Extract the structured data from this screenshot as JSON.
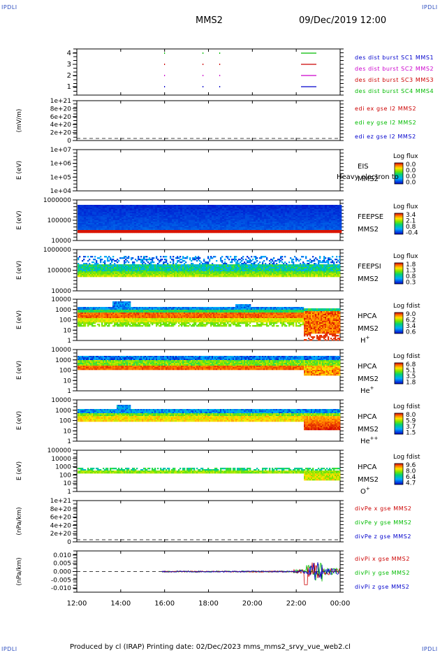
{
  "corner_labels": [
    "IPDLI",
    "IPDLI",
    "IPDLI",
    "IPDLI"
  ],
  "header": {
    "spacecraft": "MMS2",
    "datetime": "09/Dec/2019 12:00"
  },
  "footer": {
    "text": "Produced by cl (IRAP)    Printing date: 02/Dec/2023    mms_mms2_srvy_vue_web2.cl"
  },
  "time_axis": [
    "12:00",
    "14:00",
    "16:00",
    "18:00",
    "20:00",
    "22:00",
    "00:00"
  ],
  "chart_data": [
    {
      "type": "scatter",
      "panel": "burst",
      "yticks": [
        "1",
        "2",
        "3",
        "4"
      ],
      "legend": [
        {
          "text": "des dist burst SC1 MMS1",
          "color": "#0000cc"
        },
        {
          "text": "des dist burst SC2 MMS2",
          "color": "#cc00cc"
        },
        {
          "text": "des dist burst SC3 MMS3",
          "color": "#cc0000"
        },
        {
          "text": "des dist burst SC4 MMS4",
          "color": "#00bb00"
        }
      ]
    },
    {
      "type": "line",
      "panel": "edi",
      "ylabel": "(mV/m)",
      "yticks": [
        "1e+21",
        "8e+20",
        "6e+20",
        "4e+20",
        "2e+20",
        "0"
      ],
      "legend": [
        {
          "text": "edi ex gse l2 MMS2",
          "color": "#cc0000"
        },
        {
          "text": "edi ey gse l2 MMS2",
          "color": "#00bb00"
        },
        {
          "text": "edi ez gse l2 MMS2",
          "color": "#0000cc"
        }
      ]
    },
    {
      "type": "heatmap",
      "panel": "eis",
      "ylabel": "E (eV)",
      "yticks": [
        "1e+07",
        "1e+06",
        "1e+05",
        "1e+04"
      ],
      "instrument": "EIS",
      "sc": "MMS2",
      "overlay": "Heavy electron to",
      "cbar_title": "Log flux",
      "cbar_ticks": [
        "0.0",
        "0.0",
        "0.0",
        "0.0"
      ]
    },
    {
      "type": "heatmap",
      "panel": "feepse",
      "ylabel": "E (eV)",
      "yticks": [
        "1000000",
        "100000",
        "10000"
      ],
      "instrument": "FEEPSE",
      "sc": "MMS2",
      "cbar_title": "Log flux",
      "cbar_ticks": [
        "3.4",
        "2.1",
        "0.8",
        "-0.4"
      ]
    },
    {
      "type": "heatmap",
      "panel": "feepsi",
      "ylabel": "E (eV)",
      "yticks": [
        "1000000",
        "100000",
        "10000"
      ],
      "instrument": "FEEPSI",
      "sc": "MMS2",
      "cbar_title": "Log flux",
      "cbar_ticks": [
        "1.8",
        "1.3",
        "0.8",
        "0.3"
      ]
    },
    {
      "type": "heatmap",
      "panel": "hpca_h",
      "ylabel": "E (eV)",
      "yticks": [
        "10000",
        "1000",
        "100",
        "10",
        "1"
      ],
      "instrument": "HPCA",
      "sc": "MMS2",
      "species": "H",
      "species_sup": "+",
      "cbar_title": "Log fdist",
      "cbar_ticks": [
        "9.0",
        "6.2",
        "3.4",
        "0.6"
      ]
    },
    {
      "type": "heatmap",
      "panel": "hpca_he",
      "ylabel": "E (eV)",
      "yticks": [
        "10000",
        "1000",
        "100",
        "10",
        "1"
      ],
      "instrument": "HPCA",
      "sc": "MMS2",
      "species": "He",
      "species_sup": "+",
      "cbar_title": "Log fdist",
      "cbar_ticks": [
        "6.8",
        "5.1",
        "3.5",
        "1.8"
      ]
    },
    {
      "type": "heatmap",
      "panel": "hpca_hepp",
      "ylabel": "E (eV)",
      "yticks": [
        "10000",
        "1000",
        "100",
        "10",
        "1"
      ],
      "instrument": "HPCA",
      "sc": "MMS2",
      "species": "He",
      "species_sup": "++",
      "cbar_title": "Log fdist",
      "cbar_ticks": [
        "8.0",
        "5.9",
        "3.7",
        "1.5"
      ]
    },
    {
      "type": "heatmap",
      "panel": "hpca_o",
      "ylabel": "E (eV)",
      "yticks": [
        "100000",
        "10000",
        "1000",
        "100",
        "10",
        "1"
      ],
      "instrument": "HPCA",
      "sc": "MMS2",
      "species": "O",
      "species_sup": "+",
      "cbar_title": "Log fdist",
      "cbar_ticks": [
        "9.6",
        "8.0",
        "6.4",
        "4.7"
      ]
    },
    {
      "type": "line",
      "panel": "divpe",
      "ylabel": "(nPa/km)",
      "yticks": [
        "1e+21",
        "8e+20",
        "6e+20",
        "4e+20",
        "2e+20",
        "0"
      ],
      "legend": [
        {
          "text": "divPe x gse MMS2",
          "color": "#cc0000"
        },
        {
          "text": "divPe y gse MMS2",
          "color": "#00bb00"
        },
        {
          "text": "divPe z gse MMS2",
          "color": "#0000cc"
        }
      ]
    },
    {
      "type": "line",
      "panel": "divpi",
      "ylabel": "(nPa/km)",
      "yticks": [
        "0.010",
        "0.005",
        "0.000",
        "-0.005",
        "-0.010"
      ],
      "ylim": [
        -0.0125,
        0.0125
      ],
      "legend": [
        {
          "text": "divPi x gse MMS2",
          "color": "#cc0000"
        },
        {
          "text": "divPi y gse MMS2",
          "color": "#00bb00"
        },
        {
          "text": "divPi z gse MMS2",
          "color": "#0000cc"
        }
      ]
    }
  ]
}
